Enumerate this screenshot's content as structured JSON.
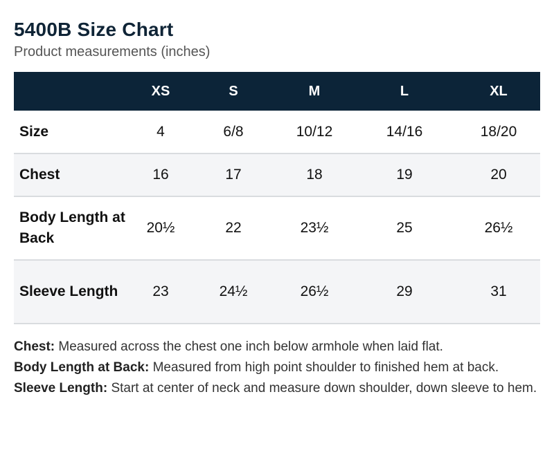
{
  "header": {
    "title": "5400B Size Chart",
    "subtitle": "Product measurements (inches)"
  },
  "table": {
    "columns": [
      "",
      "XS",
      "S",
      "M",
      "L",
      "XL"
    ],
    "rows": [
      {
        "label": "Size",
        "values": [
          "4",
          "6/8",
          "10/12",
          "14/16",
          "18/20"
        ]
      },
      {
        "label": "Chest",
        "values": [
          "16",
          "17",
          "18",
          "19",
          "20"
        ]
      },
      {
        "label": "Body Length at Back",
        "values": [
          "20½",
          "22",
          "23½",
          "25",
          "26½"
        ]
      },
      {
        "label": "Sleeve Length",
        "values": [
          "23",
          "24½",
          "26½",
          "29",
          "31"
        ]
      }
    ]
  },
  "notes": [
    {
      "term": "Chest:",
      "text": "Measured across the chest one inch below armhole when laid flat."
    },
    {
      "term": "Body Length at Back:",
      "text": "Measured from high point shoulder to finished hem at back."
    },
    {
      "term": "Sleeve Length:",
      "text": "Start at center of neck and measure down shoulder, down sleeve to hem."
    }
  ]
}
